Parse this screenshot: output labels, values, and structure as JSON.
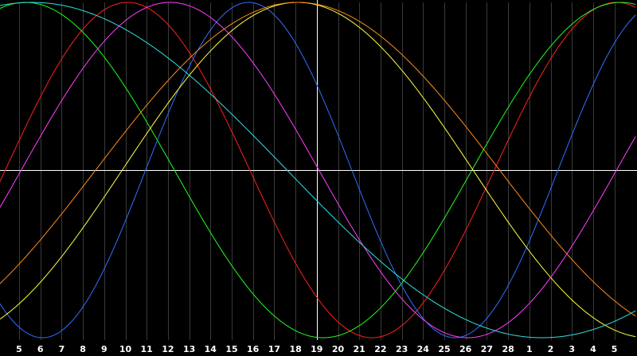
{
  "chart_data": {
    "type": "line",
    "title": "",
    "xlabel": "",
    "ylabel": "",
    "grid": true,
    "legend": "none",
    "ylim": [
      -1,
      1
    ],
    "x_tick_labels": [
      "5",
      "6",
      "7",
      "8",
      "9",
      "10",
      "11",
      "12",
      "13",
      "14",
      "15",
      "16",
      "17",
      "18",
      "19",
      "20",
      "21",
      "22",
      "23",
      "24",
      "25",
      "26",
      "27",
      "28",
      "1",
      "2",
      "3",
      "4",
      "5"
    ],
    "x_tick_start": 1.0,
    "x_range": [
      0,
      30
    ],
    "vertical_marker_tick": 19,
    "horizontal_marker_value": 0,
    "colors": {
      "background": "#000000",
      "grid_minor": "#3a3a3a",
      "axis_major": "#ffffff",
      "label": "#ffffff"
    },
    "series": [
      {
        "color": "#ff2020",
        "period": 23,
        "peak_x": 6.1
      },
      {
        "color": "#20ff20",
        "period": 28,
        "peak_x": 1.3
      },
      {
        "color": "#3070ff",
        "period": 19.4,
        "peak_x": 11.8
      },
      {
        "color": "#ffff40",
        "period": 33,
        "peak_x": 14.1
      },
      {
        "color": "#ff8c1a",
        "period": 38,
        "peak_x": 14.1
      },
      {
        "color": "#ff40ff",
        "period": 28,
        "peak_x": 8.1
      },
      {
        "color": "#30e0e0",
        "period": 48,
        "peak_x": 1.6
      }
    ]
  }
}
